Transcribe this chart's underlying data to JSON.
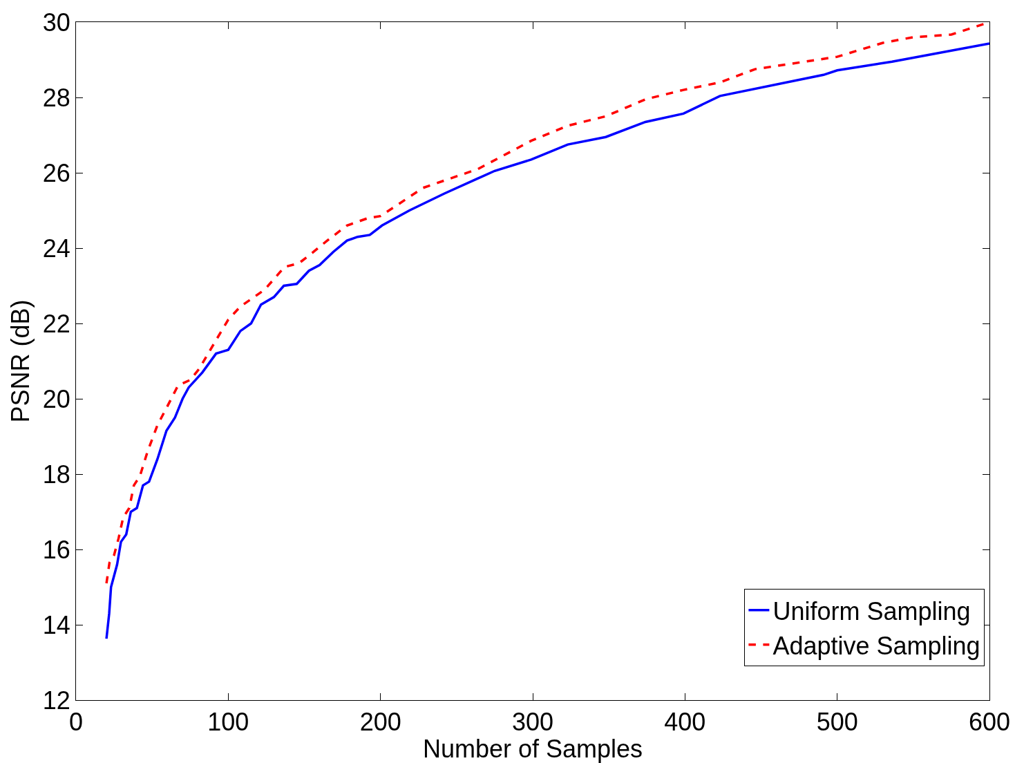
{
  "chart_data": {
    "type": "line",
    "xlabel": "Number of Samples",
    "ylabel": "PSNR (dB)",
    "xlim": [
      0,
      600
    ],
    "xticks": [
      0,
      100,
      200,
      300,
      400,
      500,
      600
    ],
    "ylim": [
      12,
      30
    ],
    "yticks": [
      12,
      14,
      16,
      18,
      20,
      22,
      24,
      26,
      28,
      30
    ],
    "legend": "bottom right",
    "series": [
      {
        "name": "Uniform Sampling",
        "color": "#0000ff",
        "line_style": "solid",
        "x": [
          20,
          21.8,
          23,
          27,
          29.5,
          33,
          36,
          40,
          44,
          48,
          53.5,
          59.4,
          65,
          70,
          74,
          83,
          92,
          100,
          108,
          115,
          121.5,
          130,
          136.5,
          145,
          153,
          160,
          169,
          178,
          185,
          193,
          201,
          219,
          242,
          264,
          275,
          299,
          323,
          348,
          374,
          399,
          423,
          491,
          500,
          536,
          600
        ],
        "values": [
          13.63,
          14.3,
          15.0,
          15.6,
          16.2,
          16.4,
          17.0,
          17.1,
          17.7,
          17.8,
          18.4,
          19.15,
          19.5,
          20.0,
          20.3,
          20.7,
          21.2,
          21.3,
          21.8,
          22.0,
          22.5,
          22.7,
          23.0,
          23.05,
          23.4,
          23.55,
          23.9,
          24.2,
          24.3,
          24.35,
          24.6,
          25.0,
          25.45,
          25.85,
          26.05,
          26.35,
          26.75,
          26.95,
          27.35,
          27.57,
          28.04,
          28.6,
          28.72,
          28.95,
          29.43
        ]
      },
      {
        "name": "Adaptive Sampling",
        "color": "#ff0000",
        "line_style": "dashed",
        "x": [
          20,
          22,
          25,
          28,
          31,
          35,
          38,
          42,
          47,
          53.5,
          60,
          67,
          75,
          81,
          87.5,
          100,
          108,
          124,
          137,
          146.5,
          156,
          165,
          178,
          192,
          200,
          228,
          264,
          299,
          323,
          348,
          374,
          399,
          423,
          446,
          500,
          530,
          550,
          575,
          600
        ],
        "values": [
          15.1,
          15.65,
          15.85,
          16.3,
          16.85,
          17.1,
          17.7,
          17.95,
          18.6,
          19.3,
          19.8,
          20.35,
          20.5,
          20.8,
          21.25,
          22.1,
          22.45,
          22.9,
          23.5,
          23.6,
          23.9,
          24.2,
          24.6,
          24.8,
          24.85,
          25.6,
          26.1,
          26.85,
          27.25,
          27.5,
          27.95,
          28.2,
          28.4,
          28.75,
          29.08,
          29.45,
          29.6,
          29.67,
          30.0
        ]
      }
    ]
  }
}
